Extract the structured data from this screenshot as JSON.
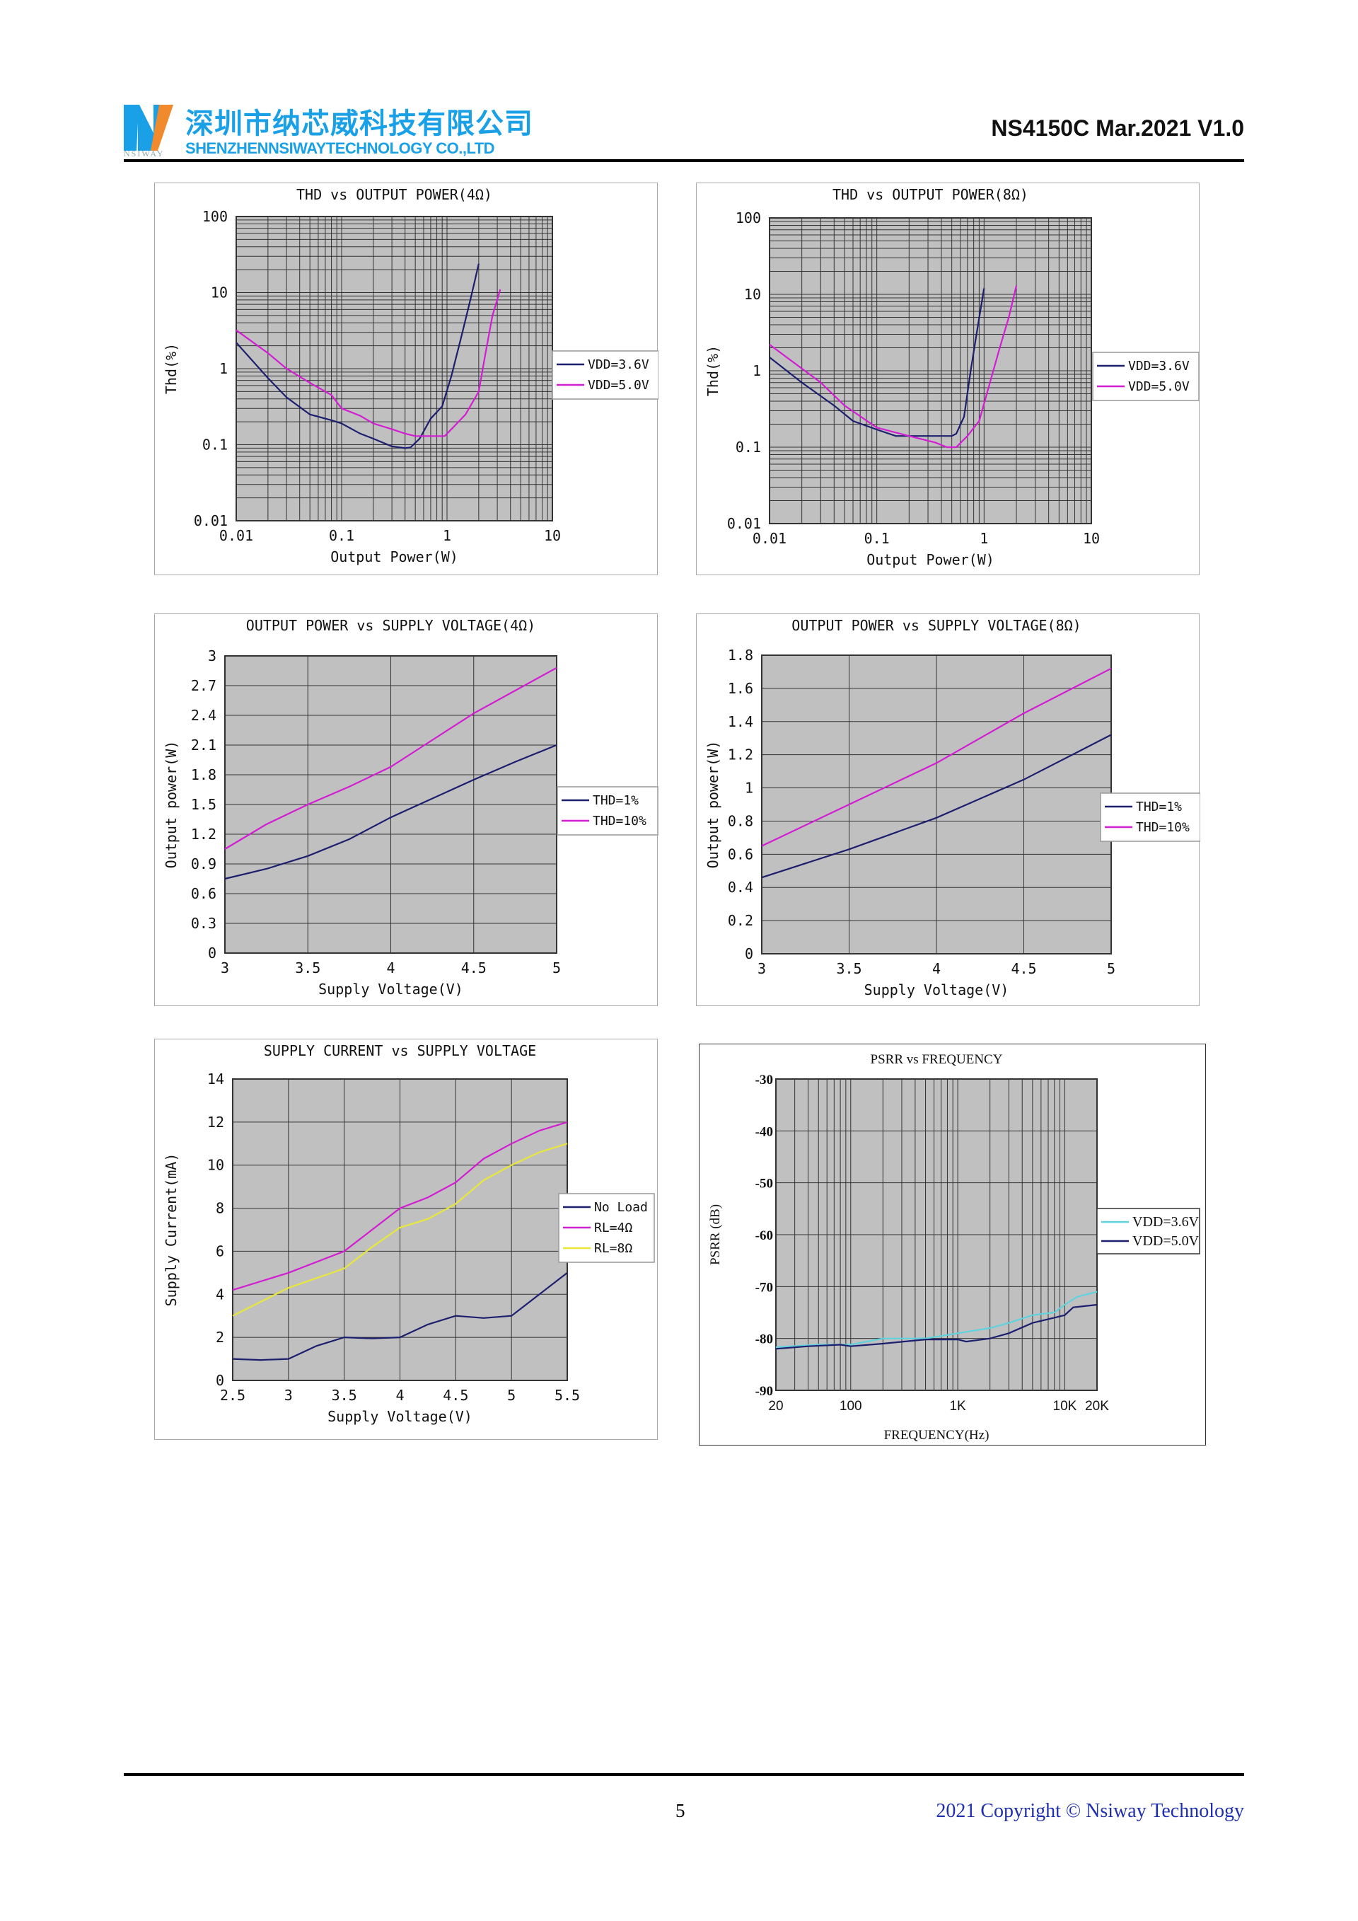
{
  "header": {
    "company_cn": "深圳市纳芯威科技有限公司",
    "company_en": "SHENZHENNSIWAYTECHNOLOGY CO.,LTD",
    "logo_text": "NSIWAY",
    "doc_id": "NS4150C Mar.2021 V1.0",
    "brand_color": "#1aa0e6"
  },
  "footer": {
    "page_number": "5",
    "copyright": "2021 Copyright © Nsiway Technology"
  },
  "chart_data": [
    {
      "type": "line",
      "title": "THD vs OUTPUT POWER(4Ω)",
      "xlabel": "Output Power(W)",
      "ylabel": "Thd(%)",
      "xscale": "log",
      "yscale": "log",
      "xlim": [
        0.01,
        10
      ],
      "ylim": [
        0.01,
        100
      ],
      "xtick_labels": [
        {
          "v": 0.01,
          "t": "0.01"
        },
        {
          "v": 0.1,
          "t": "0.1"
        },
        {
          "v": 1,
          "t": "1"
        },
        {
          "v": 10,
          "t": "10"
        }
      ],
      "ytick_labels": [
        {
          "v": 0.01,
          "t": "0.01"
        },
        {
          "v": 0.1,
          "t": "0.1"
        },
        {
          "v": 1,
          "t": "1"
        },
        {
          "v": 10,
          "t": "10"
        },
        {
          "v": 100,
          "t": "100"
        }
      ],
      "grid": true,
      "legend": "right",
      "series": [
        {
          "name": "VDD=3.6V",
          "color": "#1c1f6e",
          "x": [
            0.01,
            0.02,
            0.03,
            0.05,
            0.08,
            0.1,
            0.15,
            0.2,
            0.3,
            0.4,
            0.45,
            0.55,
            0.7,
            0.9,
            1.1,
            1.4,
            1.7,
            2.0
          ],
          "y": [
            2.2,
            0.75,
            0.42,
            0.25,
            0.21,
            0.19,
            0.14,
            0.12,
            0.095,
            0.09,
            0.092,
            0.12,
            0.22,
            0.32,
            0.8,
            3,
            9,
            24
          ]
        },
        {
          "name": "VDD=5.0V",
          "color": "#d21dd2",
          "x": [
            0.01,
            0.02,
            0.03,
            0.05,
            0.08,
            0.1,
            0.15,
            0.2,
            0.3,
            0.4,
            0.5,
            0.7,
            0.95,
            1.1,
            1.5,
            2.0,
            2.3,
            2.7,
            3.2
          ],
          "y": [
            3.2,
            1.6,
            1.0,
            0.65,
            0.45,
            0.3,
            0.24,
            0.19,
            0.16,
            0.14,
            0.13,
            0.13,
            0.13,
            0.16,
            0.25,
            0.5,
            1.5,
            5,
            11
          ]
        }
      ]
    },
    {
      "type": "line",
      "title": "THD vs OUTPUT POWER(8Ω)",
      "xlabel": "Output Power(W)",
      "ylabel": "Thd(%)",
      "xscale": "log",
      "yscale": "log",
      "xlim": [
        0.01,
        10
      ],
      "ylim": [
        0.01,
        100
      ],
      "xtick_labels": [
        {
          "v": 0.01,
          "t": "0.01"
        },
        {
          "v": 0.1,
          "t": "0.1"
        },
        {
          "v": 1,
          "t": "1"
        },
        {
          "v": 10,
          "t": "10"
        }
      ],
      "ytick_labels": [
        {
          "v": 0.01,
          "t": "0.01"
        },
        {
          "v": 0.1,
          "t": "0.1"
        },
        {
          "v": 1,
          "t": "1"
        },
        {
          "v": 10,
          "t": "10"
        },
        {
          "v": 100,
          "t": "100"
        }
      ],
      "grid": true,
      "legend": "right",
      "series": [
        {
          "name": "VDD=3.6V",
          "color": "#1c1f6e",
          "x": [
            0.01,
            0.02,
            0.04,
            0.06,
            0.1,
            0.15,
            0.3,
            0.5,
            0.55,
            0.65,
            0.75,
            0.85,
            1.0
          ],
          "y": [
            1.5,
            0.7,
            0.35,
            0.22,
            0.17,
            0.14,
            0.14,
            0.14,
            0.15,
            0.25,
            1,
            3,
            12
          ]
        },
        {
          "name": "VDD=5.0V",
          "color": "#d21dd2",
          "x": [
            0.01,
            0.03,
            0.05,
            0.1,
            0.2,
            0.35,
            0.45,
            0.55,
            0.7,
            0.9,
            1.1,
            1.4,
            1.7,
            2.0
          ],
          "y": [
            2.2,
            0.7,
            0.35,
            0.18,
            0.14,
            0.115,
            0.1,
            0.1,
            0.14,
            0.22,
            0.6,
            2,
            5,
            13
          ]
        }
      ]
    },
    {
      "type": "line",
      "title": "OUTPUT POWER vs SUPPLY VOLTAGE(4Ω)",
      "xlabel": "Supply Voltage(V)",
      "ylabel": "Output power(W)",
      "xscale": "linear",
      "yscale": "linear",
      "xlim": [
        3,
        5
      ],
      "ylim": [
        0,
        3
      ],
      "xtick_labels": [
        {
          "v": 3,
          "t": "3"
        },
        {
          "v": 3.5,
          "t": "3.5"
        },
        {
          "v": 4,
          "t": "4"
        },
        {
          "v": 4.5,
          "t": "4.5"
        },
        {
          "v": 5,
          "t": "5"
        }
      ],
      "ytick_labels": [
        {
          "v": 0,
          "t": "0"
        },
        {
          "v": 0.3,
          "t": "0.3"
        },
        {
          "v": 0.6,
          "t": "0.6"
        },
        {
          "v": 0.9,
          "t": "0.9"
        },
        {
          "v": 1.2,
          "t": "1.2"
        },
        {
          "v": 1.5,
          "t": "1.5"
        },
        {
          "v": 1.8,
          "t": "1.8"
        },
        {
          "v": 2.1,
          "t": "2.1"
        },
        {
          "v": 2.4,
          "t": "2.4"
        },
        {
          "v": 2.7,
          "t": "2.7"
        },
        {
          "v": 3,
          "t": "3"
        }
      ],
      "grid": true,
      "legend": "right",
      "series": [
        {
          "name": "THD=1%",
          "color": "#1c1f6e",
          "x": [
            3,
            3.25,
            3.5,
            3.75,
            4,
            4.25,
            4.5,
            4.75,
            5
          ],
          "y": [
            0.75,
            0.85,
            0.98,
            1.15,
            1.37,
            1.56,
            1.75,
            1.93,
            2.1
          ]
        },
        {
          "name": "THD=10%",
          "color": "#d21dd2",
          "x": [
            3,
            3.25,
            3.5,
            3.75,
            4,
            4.25,
            4.5,
            4.75,
            5
          ],
          "y": [
            1.05,
            1.3,
            1.5,
            1.68,
            1.88,
            2.15,
            2.42,
            2.65,
            2.88
          ]
        }
      ]
    },
    {
      "type": "line",
      "title": "OUTPUT POWER vs SUPPLY VOLTAGE(8Ω)",
      "xlabel": "Supply Voltage(V)",
      "ylabel": "Output power(W)",
      "xscale": "linear",
      "yscale": "linear",
      "xlim": [
        3,
        5
      ],
      "ylim": [
        0,
        1.8
      ],
      "xtick_labels": [
        {
          "v": 3,
          "t": "3"
        },
        {
          "v": 3.5,
          "t": "3.5"
        },
        {
          "v": 4,
          "t": "4"
        },
        {
          "v": 4.5,
          "t": "4.5"
        },
        {
          "v": 5,
          "t": "5"
        }
      ],
      "ytick_labels": [
        {
          "v": 0,
          "t": "0"
        },
        {
          "v": 0.2,
          "t": "0.2"
        },
        {
          "v": 0.4,
          "t": "0.4"
        },
        {
          "v": 0.6,
          "t": "0.6"
        },
        {
          "v": 0.8,
          "t": "0.8"
        },
        {
          "v": 1,
          "t": "1"
        },
        {
          "v": 1.2,
          "t": "1.2"
        },
        {
          "v": 1.4,
          "t": "1.4"
        },
        {
          "v": 1.6,
          "t": "1.6"
        },
        {
          "v": 1.8,
          "t": "1.8"
        }
      ],
      "grid": true,
      "legend": "right",
      "series": [
        {
          "name": "THD=1%",
          "color": "#1c1f6e",
          "x": [
            3,
            3.5,
            4,
            4.5,
            5
          ],
          "y": [
            0.46,
            0.63,
            0.82,
            1.05,
            1.32
          ]
        },
        {
          "name": "THD=10%",
          "color": "#d21dd2",
          "x": [
            3,
            3.5,
            4,
            4.5,
            5
          ],
          "y": [
            0.65,
            0.9,
            1.15,
            1.45,
            1.72
          ]
        }
      ]
    },
    {
      "type": "line",
      "title": "SUPPLY CURRENT vs SUPPLY VOLTAGE",
      "xlabel": "Supply Voltage(V)",
      "ylabel": "Supply Current(mA)",
      "xscale": "linear",
      "yscale": "linear",
      "xlim": [
        2.5,
        5.5
      ],
      "ylim": [
        0,
        14
      ],
      "xtick_labels": [
        {
          "v": 2.5,
          "t": "2.5"
        },
        {
          "v": 3,
          "t": "3"
        },
        {
          "v": 3.5,
          "t": "3.5"
        },
        {
          "v": 4,
          "t": "4"
        },
        {
          "v": 4.5,
          "t": "4.5"
        },
        {
          "v": 5,
          "t": "5"
        },
        {
          "v": 5.5,
          "t": "5.5"
        }
      ],
      "ytick_labels": [
        {
          "v": 0,
          "t": "0"
        },
        {
          "v": 2,
          "t": "2"
        },
        {
          "v": 4,
          "t": "4"
        },
        {
          "v": 6,
          "t": "6"
        },
        {
          "v": 8,
          "t": "8"
        },
        {
          "v": 10,
          "t": "10"
        },
        {
          "v": 12,
          "t": "12"
        },
        {
          "v": 14,
          "t": "14"
        }
      ],
      "grid": true,
      "legend": "right",
      "series": [
        {
          "name": "No Load",
          "color": "#1c1f6e",
          "x": [
            2.5,
            2.75,
            3,
            3.25,
            3.5,
            3.75,
            4,
            4.25,
            4.5,
            4.75,
            5,
            5.25,
            5.5
          ],
          "y": [
            1.0,
            0.95,
            1.0,
            1.6,
            2.0,
            1.95,
            2.0,
            2.6,
            3.0,
            2.9,
            3.0,
            4.0,
            5.0
          ]
        },
        {
          "name": "RL=4Ω",
          "color": "#d21dd2",
          "x": [
            2.5,
            3,
            3.5,
            3.75,
            4,
            4.25,
            4.5,
            4.75,
            5,
            5.25,
            5.5
          ],
          "y": [
            4.2,
            5.0,
            6.0,
            7.0,
            8.0,
            8.5,
            9.2,
            10.3,
            11.0,
            11.6,
            12.0
          ]
        },
        {
          "name": "RL=8Ω",
          "color": "#e8e83a",
          "x": [
            2.5,
            3,
            3.5,
            3.75,
            4,
            4.25,
            4.5,
            4.75,
            5,
            5.25,
            5.5
          ],
          "y": [
            3.0,
            4.3,
            5.2,
            6.2,
            7.1,
            7.5,
            8.2,
            9.3,
            10.0,
            10.6,
            11.0
          ]
        }
      ]
    },
    {
      "type": "line",
      "title": "PSRR vs FREQUENCY",
      "xlabel": "FREQUENCY(Hz)",
      "ylabel": "PSRR (dB)",
      "xscale": "log",
      "yscale": "linear",
      "xlim": [
        20,
        20000
      ],
      "ylim": [
        -90,
        -30
      ],
      "xtick_labels": [
        {
          "v": 20,
          "t": "20"
        },
        {
          "v": 100,
          "t": "100"
        },
        {
          "v": 1000,
          "t": "1K"
        },
        {
          "v": 10000,
          "t": "10K"
        },
        {
          "v": 20000,
          "t": "20K"
        }
      ],
      "ytick_labels": [
        {
          "v": -90,
          "t": "-90"
        },
        {
          "v": -80,
          "t": "-80"
        },
        {
          "v": -70,
          "t": "-70"
        },
        {
          "v": -60,
          "t": "-60"
        },
        {
          "v": -50,
          "t": "-50"
        },
        {
          "v": -40,
          "t": "-40"
        },
        {
          "v": -30,
          "t": "-30"
        }
      ],
      "grid": true,
      "legend": "right",
      "series": [
        {
          "name": "VDD=3.6V",
          "color": "#5fd3dd",
          "x": [
            20,
            50,
            100,
            150,
            200,
            500,
            1000,
            2000,
            3000,
            5000,
            8000,
            10000,
            13000,
            20000
          ],
          "y": [
            -81.7,
            -81.2,
            -81.2,
            -80.5,
            -80,
            -80,
            -79,
            -78,
            -77,
            -75.5,
            -75,
            -73.5,
            -72,
            -71
          ]
        },
        {
          "name": "VDD=5.0V",
          "color": "#1c1f6e",
          "x": [
            20,
            40,
            80,
            100,
            200,
            500,
            1000,
            1200,
            2000,
            3000,
            5000,
            8000,
            10000,
            12000,
            20000
          ],
          "y": [
            -82,
            -81.5,
            -81.2,
            -81.5,
            -81,
            -80.2,
            -80.2,
            -80.6,
            -80,
            -79,
            -77,
            -76,
            -75.5,
            -74,
            -73.5
          ]
        }
      ]
    }
  ]
}
